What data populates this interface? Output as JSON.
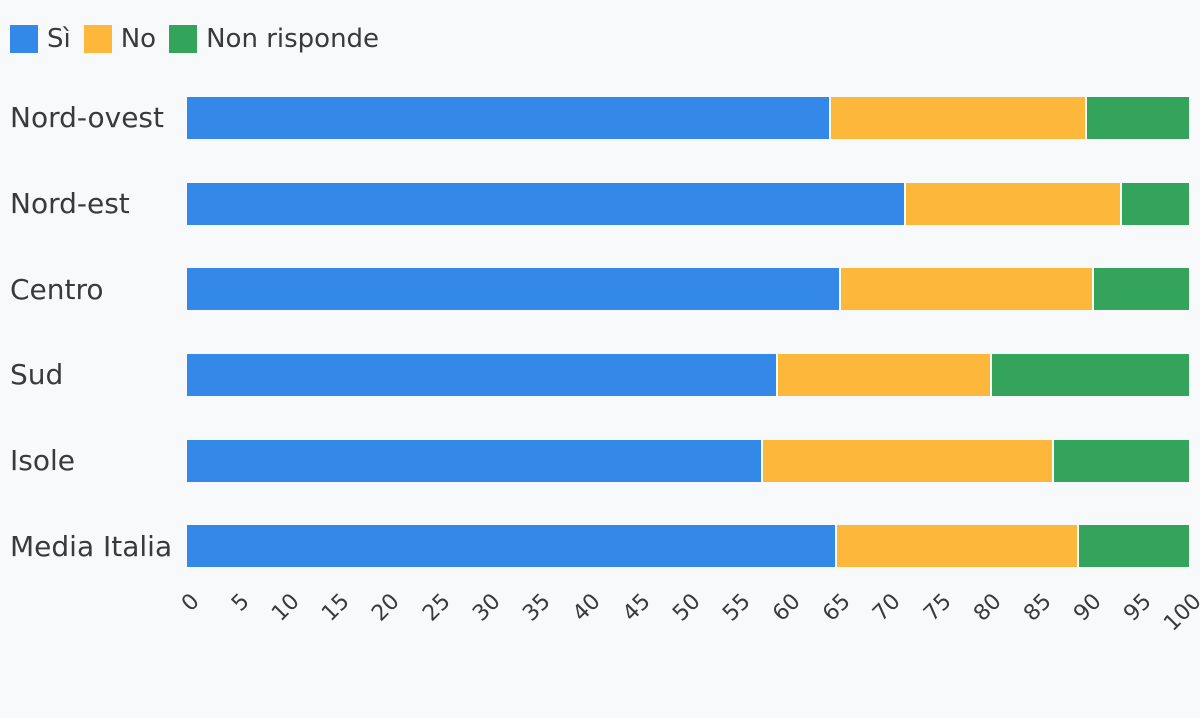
{
  "page": {
    "background_color": "#f8f9fa",
    "text_color": "#3a3a3a"
  },
  "chart_data": {
    "type": "bar",
    "orientation": "horizontal",
    "stacked": true,
    "title": "",
    "xlabel": "",
    "ylabel": "",
    "grid": false,
    "legend_position": "top-left",
    "xlim": [
      0,
      100
    ],
    "x_ticks": [
      0,
      5,
      10,
      15,
      20,
      25,
      30,
      35,
      40,
      45,
      50,
      55,
      60,
      65,
      70,
      75,
      80,
      85,
      90,
      95,
      100
    ],
    "x_tick_rotation_deg": 45,
    "categories": [
      "Nord-ovest",
      "Nord-est",
      "Centro",
      "Sud",
      "Isole",
      "Media Italia"
    ],
    "series": [
      {
        "name": "Sì",
        "color": "#3489e8",
        "values": [
          64.1,
          71.6,
          65.1,
          58.8,
          57.3,
          64.7
        ]
      },
      {
        "name": "No",
        "color": "#fdb83b",
        "values": [
          25.5,
          21.5,
          25.2,
          21.3,
          29.0,
          24.1
        ]
      },
      {
        "name": "Non risponde",
        "color": "#34a35c",
        "values": [
          10.4,
          6.9,
          9.7,
          19.9,
          13.7,
          11.2
        ]
      }
    ]
  }
}
